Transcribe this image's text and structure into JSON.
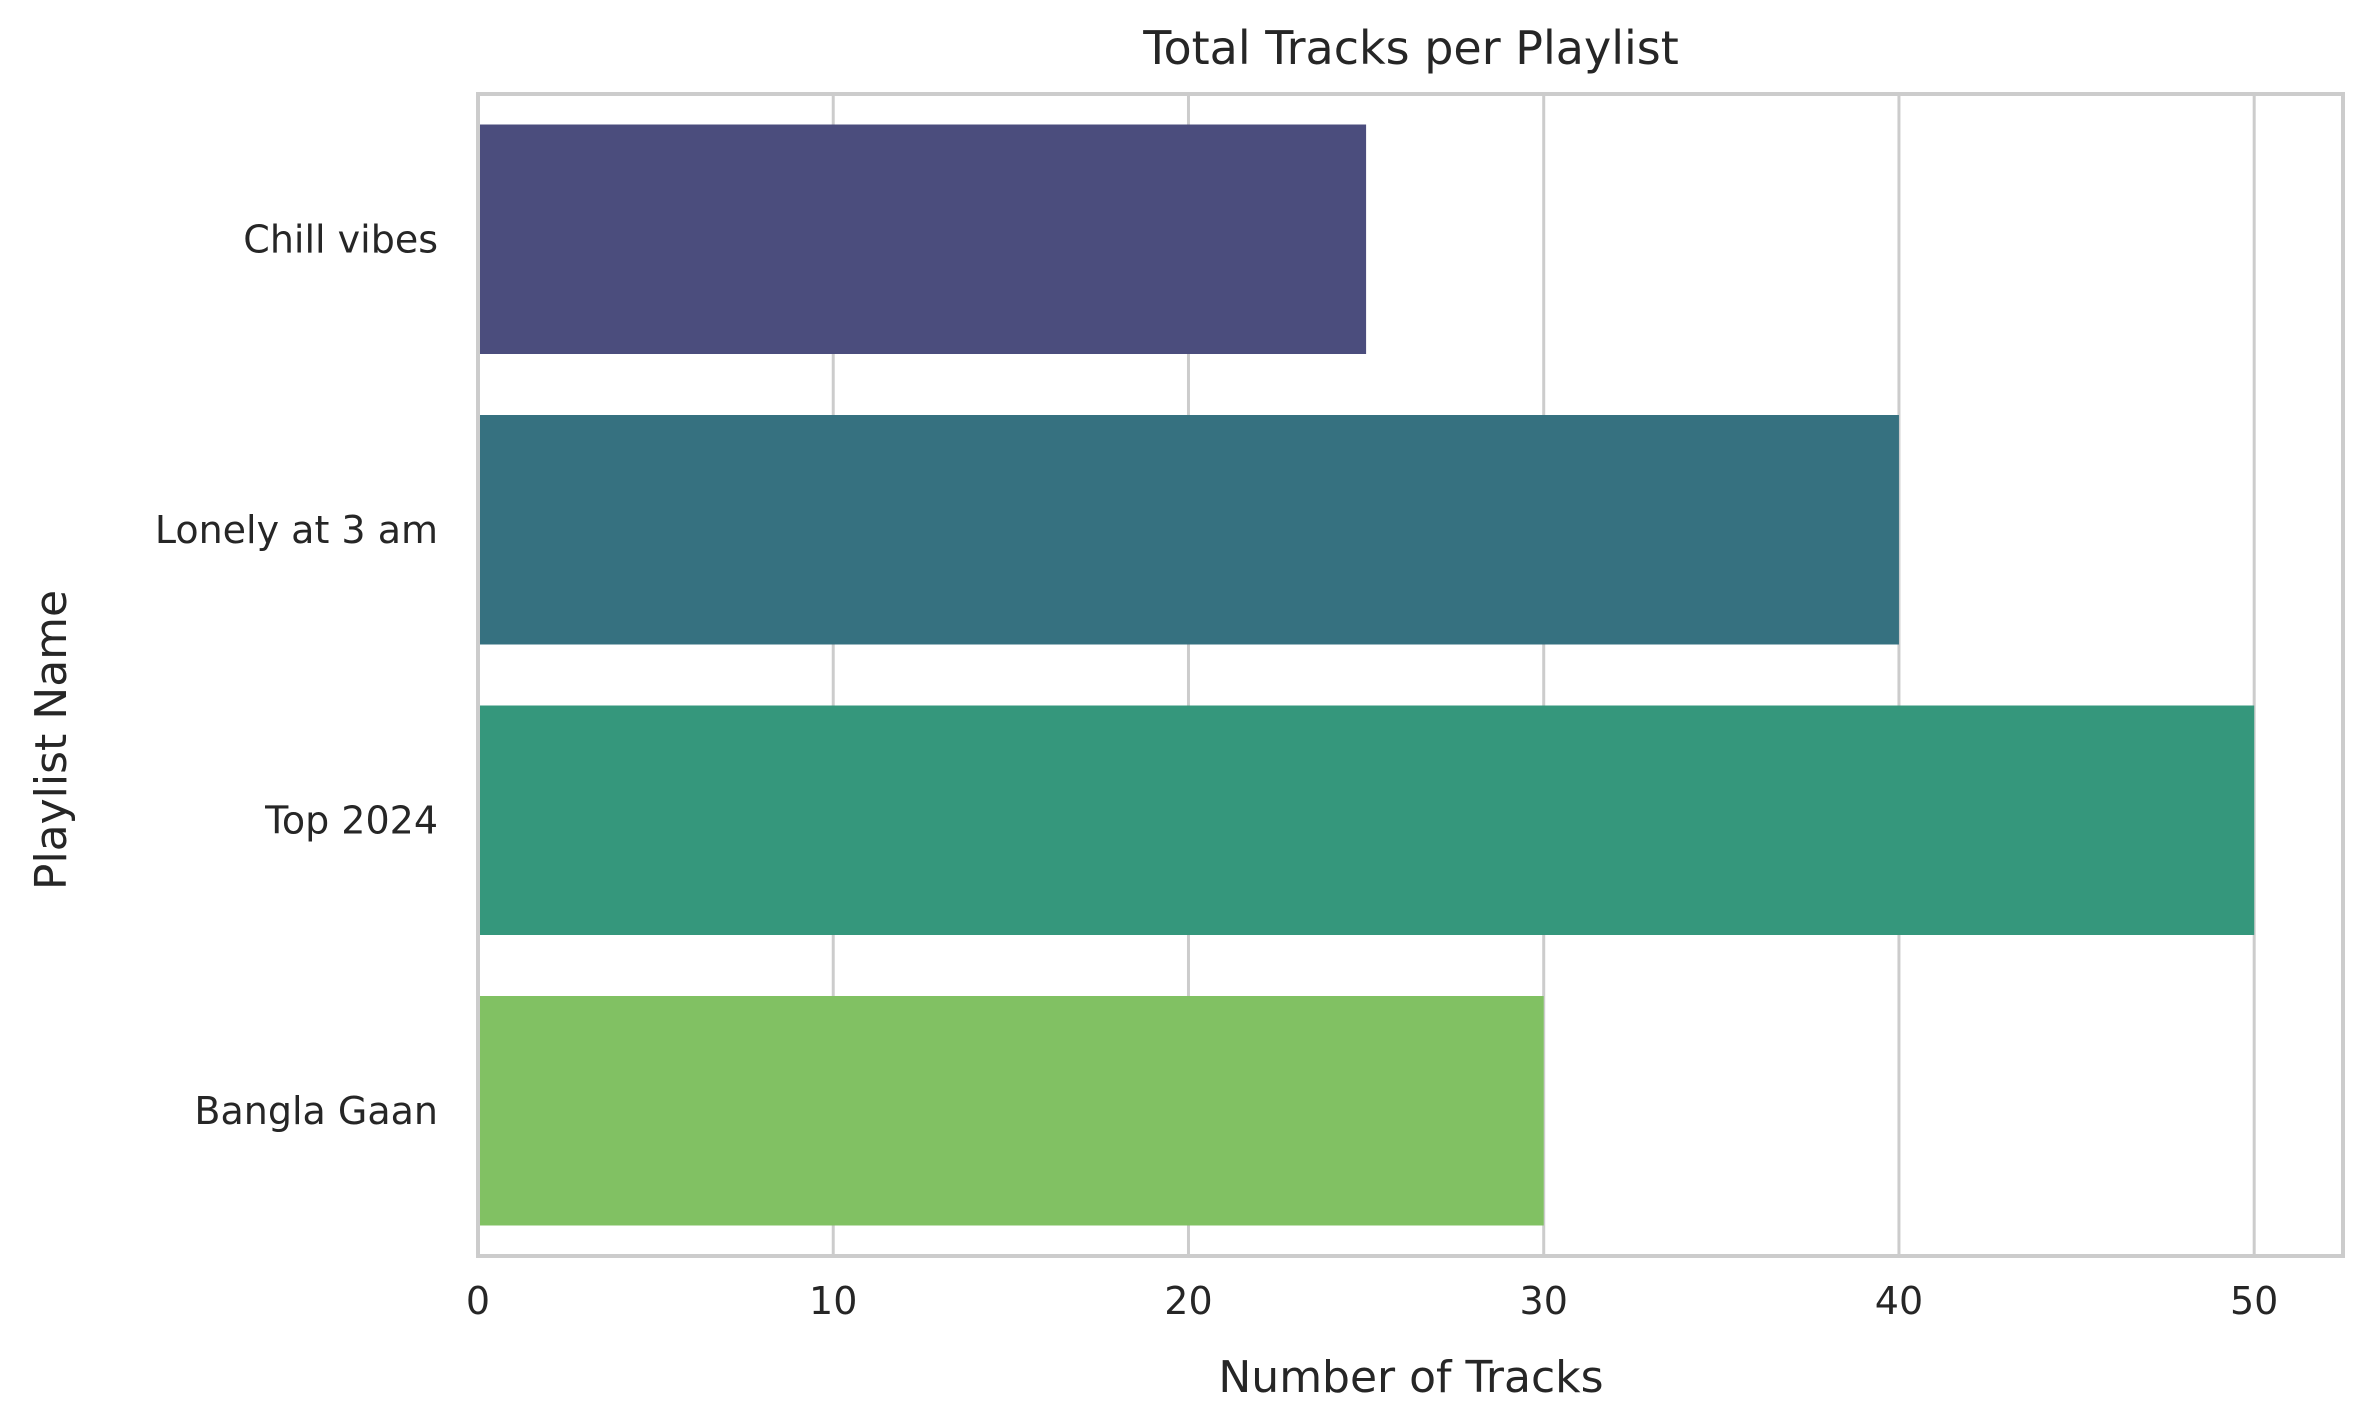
{
  "chart_data": {
    "type": "bar",
    "orientation": "horizontal",
    "title": "Total Tracks per Playlist",
    "xlabel": "Number of Tracks",
    "ylabel": "Playlist Name",
    "categories": [
      "Chill vibes",
      "Lonely at 3 am",
      "Top 2024",
      "Bangla Gaan"
    ],
    "values": [
      25,
      40,
      50,
      30
    ],
    "colors": [
      "#4b4d7d",
      "#367180",
      "#35977c",
      "#81c163"
    ],
    "xlim": [
      0,
      52.5
    ],
    "xticks": [
      0,
      10,
      20,
      30,
      40,
      50
    ],
    "grid": true,
    "grid_color": "#cccccc",
    "spine_color": "#cccccc"
  }
}
